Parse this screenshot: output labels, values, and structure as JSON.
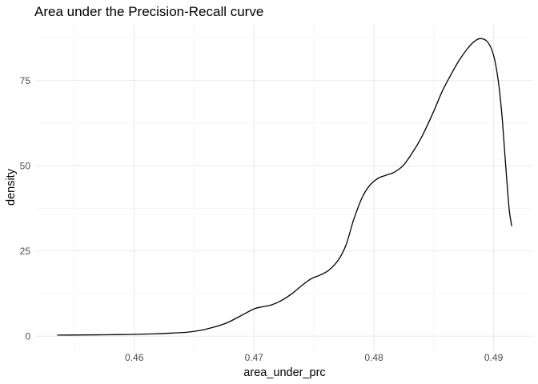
{
  "colors": {
    "background": "#ffffff",
    "grid_major": "#ebebeb",
    "grid_minor": "#f1f1f1",
    "curve": "#000000",
    "tick_label": "#4d4d4d",
    "axis_title": "#000000",
    "title": "#000000"
  },
  "chart_data": {
    "type": "line",
    "subtype": "kernel-density",
    "title": "Area under the Precision-Recall curve",
    "xlabel": "area_under_prc",
    "ylabel": "density",
    "xlim": [
      0.4518,
      0.4933
    ],
    "ylim": [
      -4.3,
      91.7
    ],
    "x_ticks": [
      0.46,
      0.47,
      0.48,
      0.49
    ],
    "x_tick_labels": [
      "0.46",
      "0.47",
      "0.48",
      "0.49"
    ],
    "x_minor_ticks": [
      0.455,
      0.465,
      0.475,
      0.485
    ],
    "y_ticks": [
      0,
      25,
      50,
      75
    ],
    "y_tick_labels": [
      "0",
      "25",
      "50",
      "75"
    ],
    "y_minor_ticks": [
      12.5,
      37.5,
      62.5,
      87.5
    ],
    "grid": "major+minor",
    "legend": "none",
    "series": [
      {
        "name": "density",
        "points": [
          [
            0.4536,
            0.3
          ],
          [
            0.4555,
            0.35
          ],
          [
            0.4575,
            0.4
          ],
          [
            0.4595,
            0.5
          ],
          [
            0.4615,
            0.65
          ],
          [
            0.4632,
            0.9
          ],
          [
            0.4645,
            1.2
          ],
          [
            0.4658,
            1.9
          ],
          [
            0.4668,
            2.8
          ],
          [
            0.4678,
            4.0
          ],
          [
            0.4688,
            5.8
          ],
          [
            0.47,
            8.0
          ],
          [
            0.4707,
            8.6
          ],
          [
            0.4714,
            9.1
          ],
          [
            0.4722,
            10.3
          ],
          [
            0.4731,
            12.3
          ],
          [
            0.474,
            14.9
          ],
          [
            0.4748,
            16.9
          ],
          [
            0.4755,
            17.9
          ],
          [
            0.4763,
            19.5
          ],
          [
            0.4771,
            22.7
          ],
          [
            0.4777,
            27.0
          ],
          [
            0.4783,
            34.0
          ],
          [
            0.479,
            40.5
          ],
          [
            0.4796,
            44.0
          ],
          [
            0.4803,
            46.2
          ],
          [
            0.481,
            47.2
          ],
          [
            0.4817,
            48.1
          ],
          [
            0.4824,
            49.9
          ],
          [
            0.4831,
            53.2
          ],
          [
            0.484,
            58.5
          ],
          [
            0.485,
            66.0
          ],
          [
            0.4857,
            71.8
          ],
          [
            0.4864,
            76.5
          ],
          [
            0.4871,
            80.8
          ],
          [
            0.4878,
            84.3
          ],
          [
            0.4884,
            86.5
          ],
          [
            0.4889,
            87.3
          ],
          [
            0.4895,
            86.3
          ],
          [
            0.49,
            82.3
          ],
          [
            0.4904,
            74.5
          ],
          [
            0.4907,
            64.5
          ],
          [
            0.4909,
            55.0
          ],
          [
            0.4911,
            45.5
          ],
          [
            0.4913,
            37.0
          ],
          [
            0.4915,
            32.4
          ]
        ]
      }
    ]
  }
}
